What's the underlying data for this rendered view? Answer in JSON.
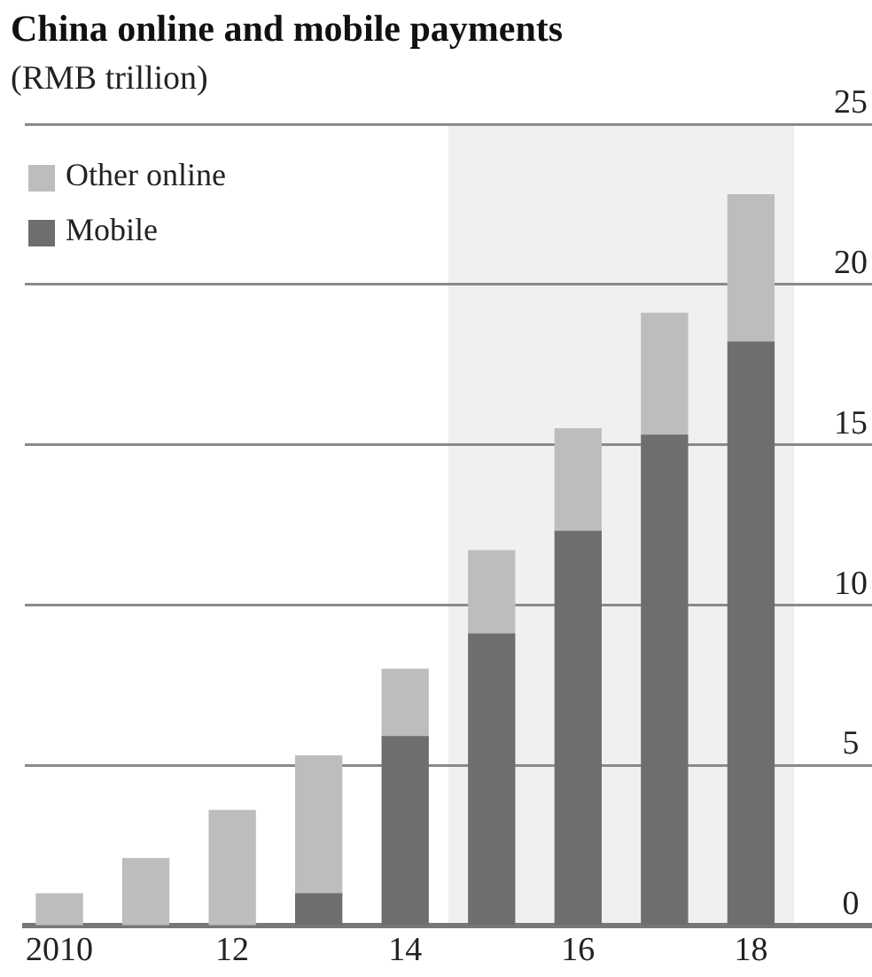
{
  "chart_data": {
    "type": "bar",
    "title": "China online and mobile payments",
    "subtitle": "(RMB trillion)",
    "x": [
      2010,
      2011,
      2012,
      2013,
      2014,
      2015,
      2016,
      2017,
      2018
    ],
    "xlim": [
      2009.6,
      2019.4
    ],
    "xticks": [
      2010,
      {
        "value": 2012,
        "label": "12"
      },
      {
        "value": 2014,
        "label": "14"
      },
      {
        "value": 2016,
        "label": "16"
      },
      {
        "value": 2018,
        "label": "18"
      }
    ],
    "ylim": [
      0,
      25
    ],
    "yticks": [
      0,
      5,
      10,
      15,
      20,
      25
    ],
    "stacked": true,
    "series": [
      {
        "name": "Mobile",
        "color": "#6e6e6e",
        "values": [
          null,
          null,
          null,
          1.0,
          5.9,
          9.1,
          12.3,
          15.3,
          18.2
        ]
      },
      {
        "name": "Other online",
        "color": "#bdbdbd",
        "values": [
          1.0,
          2.1,
          3.6,
          4.3,
          2.1,
          2.6,
          3.2,
          3.8,
          4.6
        ]
      }
    ],
    "bands": [
      {
        "axis": "x",
        "from": 2014.5,
        "to": 2018.5,
        "color": "#f0f0f0"
      }
    ],
    "grid": "y",
    "legend": "top left"
  }
}
